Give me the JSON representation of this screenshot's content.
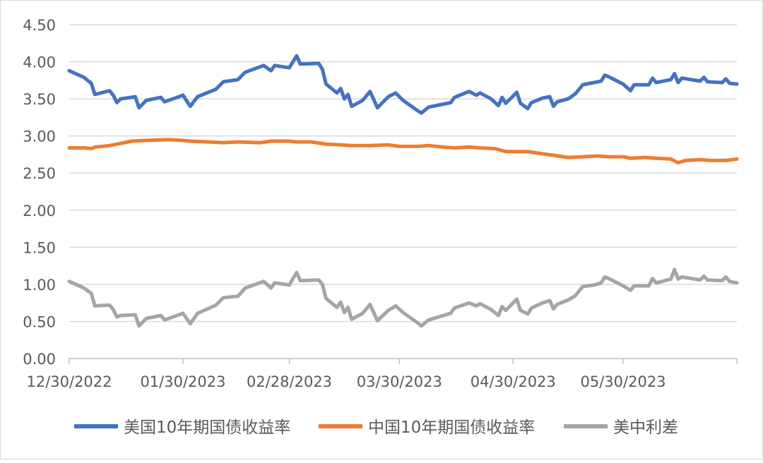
{
  "chart_data": {
    "type": "line",
    "title": "",
    "xlabel": "",
    "ylabel": "",
    "ylim": [
      0,
      4.5
    ],
    "y_ticks": [
      "0.00",
      "0.50",
      "1.00",
      "1.50",
      "2.00",
      "2.50",
      "3.00",
      "3.50",
      "4.00",
      "4.50"
    ],
    "x_range": [
      "2022-12-30",
      "2023-06-30"
    ],
    "x_tick_labels": [
      {
        "date": "2022-12-30",
        "label": "12/30/2022"
      },
      {
        "date": "2023-01-30",
        "label": "01/30/2023"
      },
      {
        "date": "2023-02-28",
        "label": "02/28/2023"
      },
      {
        "date": "2023-03-30",
        "label": "03/30/2023"
      },
      {
        "date": "2023-04-30",
        "label": "04/30/2023"
      },
      {
        "date": "2023-05-30",
        "label": "05/30/2023"
      }
    ],
    "grid": "horizontal",
    "legend_position": "bottom",
    "series": [
      {
        "name": "美国10年期国债收益率",
        "color": "#4472c4",
        "points": [
          [
            "2022-12-30",
            3.88
          ],
          [
            "2023-01-03",
            3.79
          ],
          [
            "2023-01-05",
            3.71
          ],
          [
            "2023-01-06",
            3.56
          ],
          [
            "2023-01-10",
            3.61
          ],
          [
            "2023-01-11",
            3.55
          ],
          [
            "2023-01-12",
            3.45
          ],
          [
            "2023-01-13",
            3.5
          ],
          [
            "2023-01-17",
            3.53
          ],
          [
            "2023-01-18",
            3.38
          ],
          [
            "2023-01-20",
            3.48
          ],
          [
            "2023-01-24",
            3.52
          ],
          [
            "2023-01-25",
            3.46
          ],
          [
            "2023-01-30",
            3.55
          ],
          [
            "2023-02-01",
            3.4
          ],
          [
            "2023-02-03",
            3.53
          ],
          [
            "2023-02-08",
            3.63
          ],
          [
            "2023-02-10",
            3.73
          ],
          [
            "2023-02-14",
            3.76
          ],
          [
            "2023-02-16",
            3.86
          ],
          [
            "2023-02-21",
            3.95
          ],
          [
            "2023-02-23",
            3.88
          ],
          [
            "2023-02-24",
            3.95
          ],
          [
            "2023-02-28",
            3.92
          ],
          [
            "2023-03-01",
            4.0
          ],
          [
            "2023-03-02",
            4.08
          ],
          [
            "2023-03-03",
            3.97
          ],
          [
            "2023-03-08",
            3.98
          ],
          [
            "2023-03-09",
            3.9
          ],
          [
            "2023-03-10",
            3.7
          ],
          [
            "2023-03-13",
            3.58
          ],
          [
            "2023-03-14",
            3.64
          ],
          [
            "2023-03-15",
            3.5
          ],
          [
            "2023-03-16",
            3.56
          ],
          [
            "2023-03-17",
            3.4
          ],
          [
            "2023-03-20",
            3.48
          ],
          [
            "2023-03-22",
            3.6
          ],
          [
            "2023-03-24",
            3.38
          ],
          [
            "2023-03-27",
            3.53
          ],
          [
            "2023-03-29",
            3.58
          ],
          [
            "2023-03-31",
            3.48
          ],
          [
            "2023-04-04",
            3.34
          ],
          [
            "2023-04-05",
            3.31
          ],
          [
            "2023-04-07",
            3.39
          ],
          [
            "2023-04-11",
            3.43
          ],
          [
            "2023-04-13",
            3.45
          ],
          [
            "2023-04-14",
            3.52
          ],
          [
            "2023-04-18",
            3.6
          ],
          [
            "2023-04-20",
            3.55
          ],
          [
            "2023-04-21",
            3.58
          ],
          [
            "2023-04-24",
            3.5
          ],
          [
            "2023-04-26",
            3.41
          ],
          [
            "2023-04-27",
            3.52
          ],
          [
            "2023-04-28",
            3.44
          ],
          [
            "2023-05-01",
            3.59
          ],
          [
            "2023-05-02",
            3.44
          ],
          [
            "2023-05-04",
            3.37
          ],
          [
            "2023-05-05",
            3.45
          ],
          [
            "2023-05-08",
            3.51
          ],
          [
            "2023-05-10",
            3.53
          ],
          [
            "2023-05-11",
            3.4
          ],
          [
            "2023-05-12",
            3.46
          ],
          [
            "2023-05-15",
            3.5
          ],
          [
            "2023-05-17",
            3.57
          ],
          [
            "2023-05-19",
            3.69
          ],
          [
            "2023-05-22",
            3.72
          ],
          [
            "2023-05-24",
            3.74
          ],
          [
            "2023-05-25",
            3.82
          ],
          [
            "2023-05-26",
            3.8
          ],
          [
            "2023-05-30",
            3.7
          ],
          [
            "2023-06-01",
            3.61
          ],
          [
            "2023-06-02",
            3.69
          ],
          [
            "2023-06-06",
            3.69
          ],
          [
            "2023-06-07",
            3.78
          ],
          [
            "2023-06-08",
            3.72
          ],
          [
            "2023-06-12",
            3.76
          ],
          [
            "2023-06-13",
            3.84
          ],
          [
            "2023-06-14",
            3.72
          ],
          [
            "2023-06-15",
            3.78
          ],
          [
            "2023-06-20",
            3.74
          ],
          [
            "2023-06-21",
            3.79
          ],
          [
            "2023-06-22",
            3.73
          ],
          [
            "2023-06-26",
            3.72
          ],
          [
            "2023-06-27",
            3.77
          ],
          [
            "2023-06-28",
            3.71
          ],
          [
            "2023-06-30",
            3.7
          ]
        ]
      },
      {
        "name": "中国10年期国债收益率",
        "color": "#ed7d31",
        "points": [
          [
            "2022-12-30",
            2.84
          ],
          [
            "2023-01-03",
            2.84
          ],
          [
            "2023-01-05",
            2.83
          ],
          [
            "2023-01-06",
            2.85
          ],
          [
            "2023-01-10",
            2.87
          ],
          [
            "2023-01-12",
            2.89
          ],
          [
            "2023-01-16",
            2.93
          ],
          [
            "2023-01-20",
            2.94
          ],
          [
            "2023-01-26",
            2.95
          ],
          [
            "2023-01-30",
            2.94
          ],
          [
            "2023-02-01",
            2.93
          ],
          [
            "2023-02-06",
            2.92
          ],
          [
            "2023-02-10",
            2.91
          ],
          [
            "2023-02-14",
            2.92
          ],
          [
            "2023-02-20",
            2.91
          ],
          [
            "2023-02-23",
            2.93
          ],
          [
            "2023-02-28",
            2.93
          ],
          [
            "2023-03-02",
            2.92
          ],
          [
            "2023-03-06",
            2.92
          ],
          [
            "2023-03-10",
            2.89
          ],
          [
            "2023-03-14",
            2.88
          ],
          [
            "2023-03-17",
            2.87
          ],
          [
            "2023-03-22",
            2.87
          ],
          [
            "2023-03-27",
            2.88
          ],
          [
            "2023-03-30",
            2.86
          ],
          [
            "2023-04-04",
            2.86
          ],
          [
            "2023-04-07",
            2.87
          ],
          [
            "2023-04-11",
            2.85
          ],
          [
            "2023-04-14",
            2.84
          ],
          [
            "2023-04-18",
            2.85
          ],
          [
            "2023-04-21",
            2.84
          ],
          [
            "2023-04-25",
            2.83
          ],
          [
            "2023-04-28",
            2.79
          ],
          [
            "2023-05-04",
            2.79
          ],
          [
            "2023-05-08",
            2.76
          ],
          [
            "2023-05-11",
            2.74
          ],
          [
            "2023-05-15",
            2.71
          ],
          [
            "2023-05-19",
            2.72
          ],
          [
            "2023-05-23",
            2.73
          ],
          [
            "2023-05-26",
            2.72
          ],
          [
            "2023-05-30",
            2.72
          ],
          [
            "2023-06-01",
            2.7
          ],
          [
            "2023-06-05",
            2.71
          ],
          [
            "2023-06-08",
            2.7
          ],
          [
            "2023-06-12",
            2.69
          ],
          [
            "2023-06-14",
            2.64
          ],
          [
            "2023-06-16",
            2.67
          ],
          [
            "2023-06-20",
            2.68
          ],
          [
            "2023-06-23",
            2.67
          ],
          [
            "2023-06-27",
            2.67
          ],
          [
            "2023-06-30",
            2.69
          ]
        ]
      },
      {
        "name": "美中利差",
        "color": "#a5a5a5",
        "points": [
          [
            "2022-12-30",
            1.04
          ],
          [
            "2023-01-03",
            0.95
          ],
          [
            "2023-01-05",
            0.88
          ],
          [
            "2023-01-06",
            0.71
          ],
          [
            "2023-01-10",
            0.72
          ],
          [
            "2023-01-11",
            0.66
          ],
          [
            "2023-01-12",
            0.56
          ],
          [
            "2023-01-13",
            0.58
          ],
          [
            "2023-01-17",
            0.59
          ],
          [
            "2023-01-18",
            0.44
          ],
          [
            "2023-01-20",
            0.54
          ],
          [
            "2023-01-24",
            0.58
          ],
          [
            "2023-01-25",
            0.52
          ],
          [
            "2023-01-30",
            0.61
          ],
          [
            "2023-02-01",
            0.47
          ],
          [
            "2023-02-03",
            0.61
          ],
          [
            "2023-02-08",
            0.72
          ],
          [
            "2023-02-10",
            0.82
          ],
          [
            "2023-02-14",
            0.84
          ],
          [
            "2023-02-16",
            0.95
          ],
          [
            "2023-02-21",
            1.04
          ],
          [
            "2023-02-23",
            0.95
          ],
          [
            "2023-02-24",
            1.02
          ],
          [
            "2023-02-28",
            0.99
          ],
          [
            "2023-03-01",
            1.08
          ],
          [
            "2023-03-02",
            1.16
          ],
          [
            "2023-03-03",
            1.05
          ],
          [
            "2023-03-08",
            1.06
          ],
          [
            "2023-03-09",
            1.0
          ],
          [
            "2023-03-10",
            0.81
          ],
          [
            "2023-03-13",
            0.69
          ],
          [
            "2023-03-14",
            0.76
          ],
          [
            "2023-03-15",
            0.62
          ],
          [
            "2023-03-16",
            0.69
          ],
          [
            "2023-03-17",
            0.53
          ],
          [
            "2023-03-20",
            0.61
          ],
          [
            "2023-03-22",
            0.73
          ],
          [
            "2023-03-24",
            0.51
          ],
          [
            "2023-03-27",
            0.65
          ],
          [
            "2023-03-29",
            0.71
          ],
          [
            "2023-03-31",
            0.62
          ],
          [
            "2023-04-04",
            0.48
          ],
          [
            "2023-04-05",
            0.44
          ],
          [
            "2023-04-07",
            0.52
          ],
          [
            "2023-04-11",
            0.58
          ],
          [
            "2023-04-13",
            0.61
          ],
          [
            "2023-04-14",
            0.68
          ],
          [
            "2023-04-18",
            0.75
          ],
          [
            "2023-04-20",
            0.71
          ],
          [
            "2023-04-21",
            0.74
          ],
          [
            "2023-04-24",
            0.66
          ],
          [
            "2023-04-26",
            0.58
          ],
          [
            "2023-04-27",
            0.7
          ],
          [
            "2023-04-28",
            0.65
          ],
          [
            "2023-05-01",
            0.8
          ],
          [
            "2023-05-02",
            0.65
          ],
          [
            "2023-05-04",
            0.6
          ],
          [
            "2023-05-05",
            0.68
          ],
          [
            "2023-05-08",
            0.75
          ],
          [
            "2023-05-10",
            0.78
          ],
          [
            "2023-05-11",
            0.67
          ],
          [
            "2023-05-12",
            0.73
          ],
          [
            "2023-05-15",
            0.79
          ],
          [
            "2023-05-17",
            0.85
          ],
          [
            "2023-05-19",
            0.97
          ],
          [
            "2023-05-22",
            0.99
          ],
          [
            "2023-05-24",
            1.02
          ],
          [
            "2023-05-25",
            1.1
          ],
          [
            "2023-05-26",
            1.08
          ],
          [
            "2023-05-30",
            0.98
          ],
          [
            "2023-06-01",
            0.92
          ],
          [
            "2023-06-02",
            0.98
          ],
          [
            "2023-06-06",
            0.98
          ],
          [
            "2023-06-07",
            1.08
          ],
          [
            "2023-06-08",
            1.02
          ],
          [
            "2023-06-12",
            1.07
          ],
          [
            "2023-06-13",
            1.2
          ],
          [
            "2023-06-14",
            1.07
          ],
          [
            "2023-06-15",
            1.1
          ],
          [
            "2023-06-20",
            1.06
          ],
          [
            "2023-06-21",
            1.11
          ],
          [
            "2023-06-22",
            1.06
          ],
          [
            "2023-06-26",
            1.05
          ],
          [
            "2023-06-27",
            1.1
          ],
          [
            "2023-06-28",
            1.04
          ],
          [
            "2023-06-30",
            1.02
          ]
        ]
      }
    ]
  }
}
